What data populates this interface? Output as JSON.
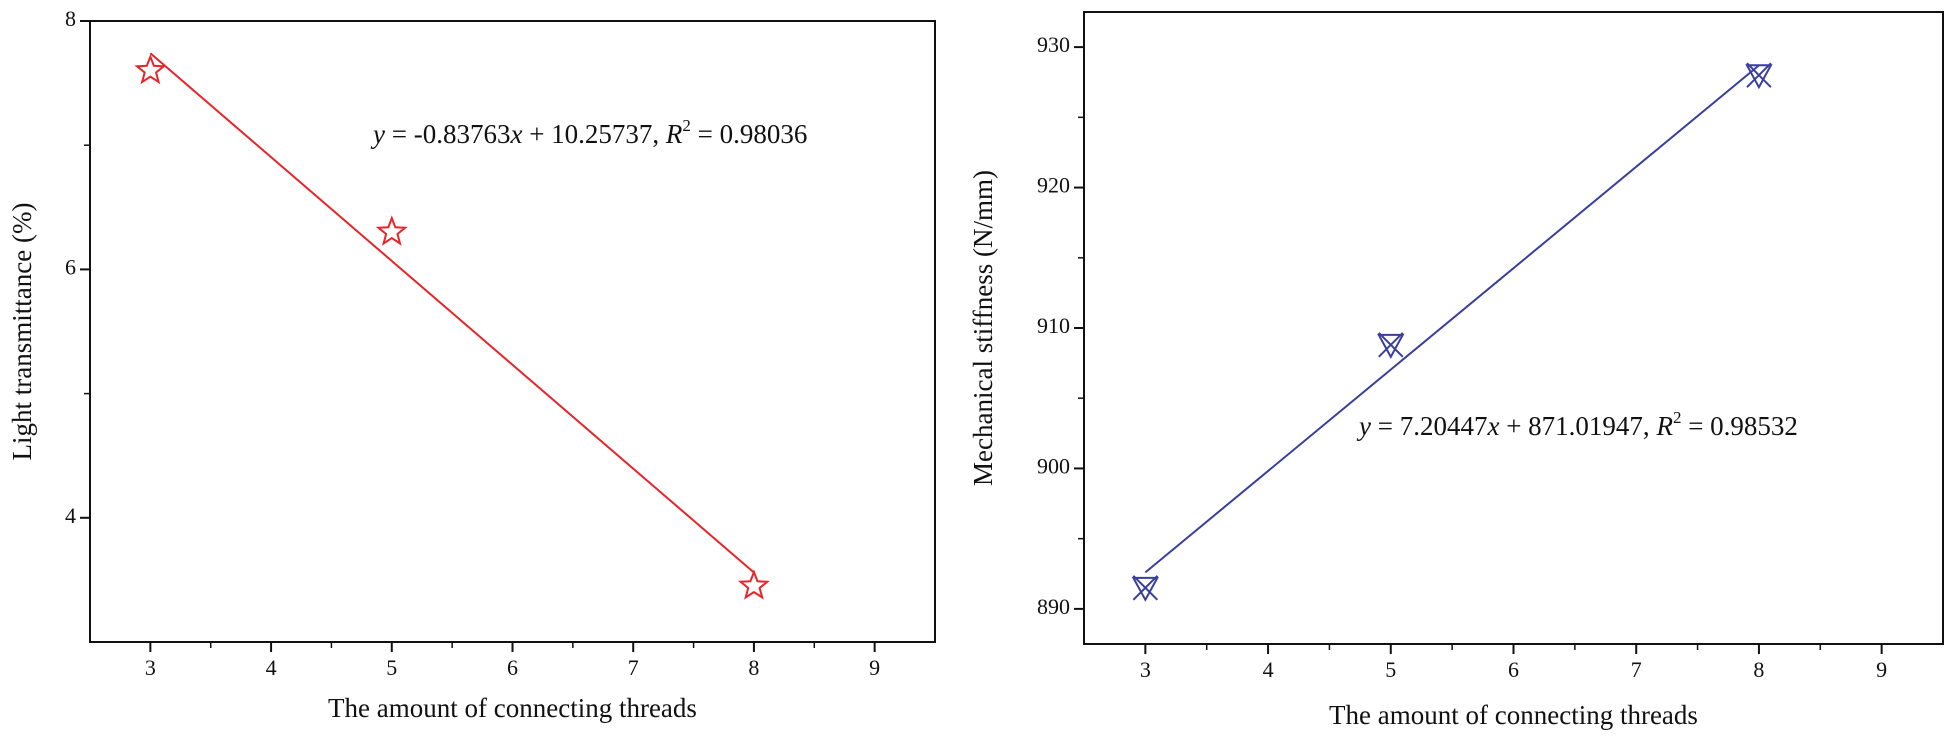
{
  "chart_data": [
    {
      "type": "scatter",
      "marker": "star",
      "color": "#e8242a",
      "x": [
        3,
        5,
        8
      ],
      "values": [
        7.6,
        6.3,
        3.45
      ],
      "trend": {
        "x": [
          3,
          8
        ],
        "values": [
          7.74,
          3.56
        ]
      },
      "xlabel": "The amount of connecting threads",
      "ylabel": "Light transmittance (%)",
      "annotation": [
        "y",
        " = -0.83763",
        "x",
        " + 10.25737, ",
        "R",
        "2",
        " = 0.98036"
      ],
      "xlim": [
        2.5,
        9.5
      ],
      "xticks": [
        3,
        4,
        5,
        6,
        7,
        8,
        9
      ],
      "ylim": [
        3,
        8
      ],
      "yticks": [
        4,
        6,
        8
      ],
      "grid": false
    },
    {
      "type": "scatter",
      "marker": "x-triangle",
      "color": "#3a3f9c",
      "x": [
        3,
        5,
        8
      ],
      "values": [
        891.5,
        908.8,
        928
      ],
      "trend": {
        "x": [
          3,
          8
        ],
        "values": [
          892.6,
          928.7
        ]
      },
      "xlabel": "The amount of connecting threads",
      "ylabel": "Mechanical stiffness (N/mm)",
      "annotation": [
        "y",
        " = 7.20447",
        "x",
        " + 871.01947, ",
        "R",
        "2",
        " = 0.98532"
      ],
      "xlim": [
        2.5,
        9.5
      ],
      "xticks": [
        3,
        4,
        5,
        6,
        7,
        8,
        9
      ],
      "ylim": [
        887.5,
        932.5
      ],
      "yticks": [
        890,
        900,
        910,
        920,
        930
      ],
      "grid": false
    }
  ]
}
